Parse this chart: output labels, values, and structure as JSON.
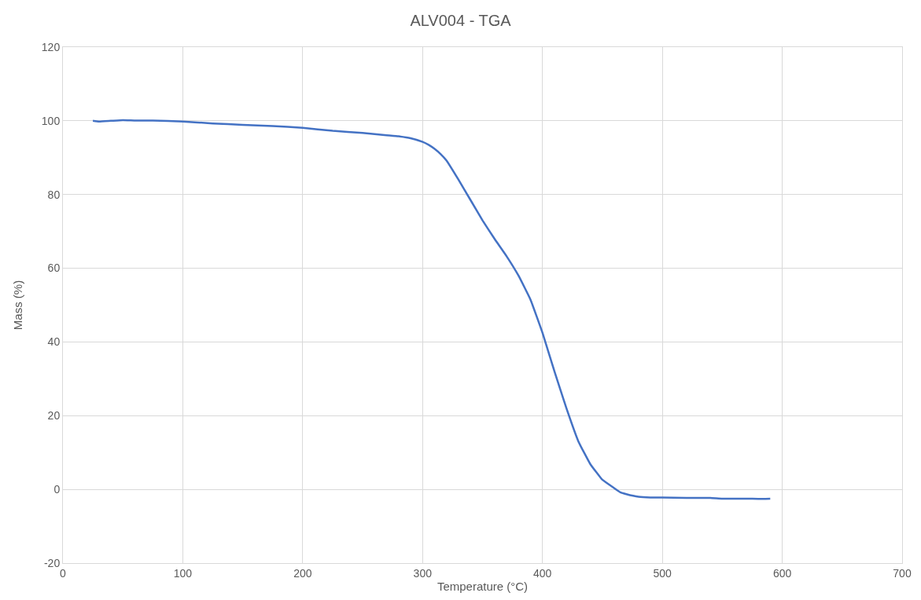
{
  "chart_data": {
    "type": "line",
    "title": "ALV004 - TGA",
    "xlabel": "Temperature (°C)",
    "ylabel": "Mass (%)",
    "series": [
      {
        "color": "#4472c4",
        "x": [
          25,
          30,
          40,
          50,
          60,
          75,
          100,
          125,
          150,
          175,
          200,
          225,
          250,
          270,
          280,
          290,
          300,
          305,
          310,
          315,
          320,
          330,
          340,
          350,
          360,
          370,
          380,
          390,
          400,
          410,
          420,
          430,
          440,
          450,
          460,
          465,
          470,
          480,
          490,
          500,
          520,
          540,
          550,
          570,
          580,
          590
        ],
        "values": [
          100,
          99.8,
          100,
          100.2,
          100.1,
          100.1,
          99.8,
          99.3,
          98.9,
          98.6,
          98.1,
          97.3,
          96.7,
          96.1,
          95.8,
          95.3,
          94.3,
          93.5,
          92.4,
          91.0,
          89.2,
          84,
          78.5,
          73,
          68,
          63.3,
          58,
          51.5,
          42.5,
          32,
          22,
          13,
          6.8,
          2.6,
          0.3,
          -0.8,
          -1.3,
          -2,
          -2.2,
          -2.2,
          -2.3,
          -2.3,
          -2.5,
          -2.5,
          -2.6,
          -2.5
        ]
      }
    ],
    "xlim": [
      0,
      700
    ],
    "xticks": [
      0,
      100,
      200,
      300,
      400,
      500,
      600,
      700
    ],
    "ylim": [
      -20,
      120
    ],
    "yticks": [
      -20,
      0,
      20,
      40,
      60,
      80,
      100,
      120
    ],
    "grid": true,
    "marker": "none",
    "line_style": "solid"
  }
}
